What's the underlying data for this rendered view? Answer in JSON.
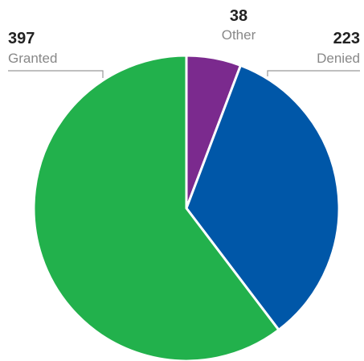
{
  "chart_data": {
    "type": "pie",
    "categories": [
      "Other",
      "Denied",
      "Granted"
    ],
    "values": [
      38,
      223,
      397
    ],
    "colors": [
      "#7b2a8e",
      "#0057a8",
      "#22b14c"
    ]
  }
}
